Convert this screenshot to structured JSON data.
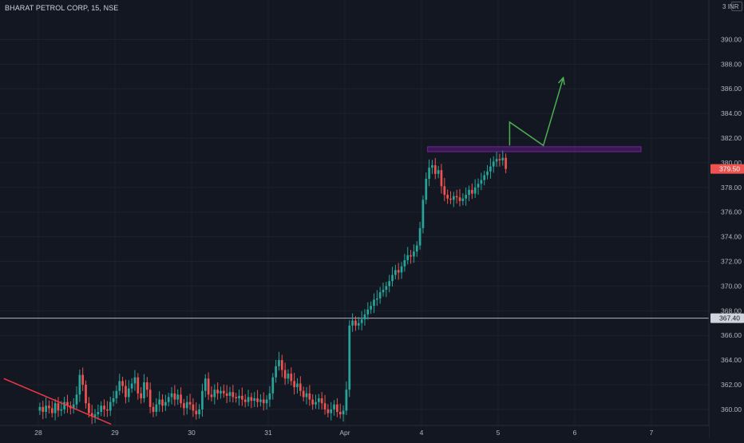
{
  "header": {
    "symbol_title": "BHARAT PETROL CORP, 15, NSE",
    "currency": "INR",
    "axis_cutoff_label": "3"
  },
  "colors": {
    "background": "#131722",
    "up": "#26a69a",
    "down": "#ef5350",
    "grid": "#1e222d",
    "axis_text": "#b2b5be",
    "support_line": "#b2b5be",
    "resistance_zone": "#7b1fa2",
    "projection_arrow": "#4caf50",
    "trendline": "#f23645"
  },
  "price_badges": {
    "last_price": "379.50",
    "support_level": "367.40"
  },
  "chart_data": {
    "type": "candlestick",
    "title": "BHARAT PETROL CORP, 15, NSE",
    "y_unit": "INR",
    "ylim": [
      358.7,
      393.2
    ],
    "y_ticks": [
      360,
      362,
      364,
      366,
      368,
      370,
      372,
      374,
      376,
      378,
      380,
      382,
      384,
      386,
      388,
      390
    ],
    "x_ticks": [
      {
        "label": "28",
        "session": 0
      },
      {
        "label": "29",
        "session": 1
      },
      {
        "label": "30",
        "session": 2
      },
      {
        "label": "31",
        "session": 3
      },
      {
        "label": "Apr",
        "session": 4
      },
      {
        "label": "4",
        "session": 5
      },
      {
        "label": "5",
        "session": 6
      },
      {
        "label": "6",
        "session": 7
      },
      {
        "label": "7",
        "session": 8
      }
    ],
    "grid": true,
    "last_price": 379.5,
    "horizontal_levels": [
      367.4
    ],
    "resistance_zone": {
      "from": 380.9,
      "to": 381.3
    },
    "sessions": [
      {
        "label": "28",
        "closes": [
          360.2,
          359.8,
          360.3,
          360.1,
          359.7,
          360.5,
          359.9,
          360.0,
          360.6,
          360.3,
          360.1,
          360.4,
          361.2,
          362.8,
          362.0,
          360.5,
          359.7,
          359.4,
          359.6,
          359.8,
          360.3,
          360.0,
          359.9,
          360.6,
          360.9
        ]
      },
      {
        "label": "29",
        "closes": [
          361.5,
          362.3,
          361.9,
          361.0,
          361.7,
          362.1,
          362.6,
          361.3,
          360.9,
          362.2,
          361.6,
          360.2,
          359.8,
          360.4,
          360.8,
          360.3,
          360.6,
          361.0,
          361.3,
          360.8,
          361.2,
          360.5,
          360.1,
          360.6,
          360.4
        ]
      },
      {
        "label": "30",
        "closes": [
          359.9,
          359.6,
          360.0,
          361.5,
          362.5,
          361.2,
          361.0,
          361.6,
          361.3,
          361.5,
          361.3,
          361.1,
          361.4,
          361.0,
          360.9,
          361.1,
          360.8,
          360.6,
          361.0,
          360.7,
          360.9,
          360.6,
          360.8,
          360.5,
          360.8
        ]
      },
      {
        "label": "31",
        "closes": [
          361.3,
          362.6,
          363.5,
          364.0,
          363.2,
          362.5,
          362.9,
          362.3,
          361.8,
          362.1,
          361.5,
          361.0,
          361.3,
          360.8,
          360.4,
          360.6,
          360.9,
          360.5,
          360.0,
          359.7,
          360.0,
          360.4,
          359.8,
          359.6,
          359.9
        ]
      },
      {
        "label": "Apr",
        "closes": [
          361.6,
          366.8,
          367.2,
          366.8,
          367.0,
          367.3,
          367.7,
          368.1,
          368.4,
          368.9,
          369.0,
          369.5,
          369.7,
          370.0,
          370.4,
          370.9,
          371.3,
          371.1,
          371.6,
          372.1,
          372.5,
          372.4,
          372.8,
          373.3,
          374.7
        ]
      },
      {
        "label": "4",
        "closes": [
          377.0,
          378.7,
          379.6,
          379.8,
          379.1,
          379.4,
          378.1,
          377.4,
          377.1,
          377.0,
          377.3,
          377.2,
          376.9,
          377.1,
          377.4,
          377.8,
          377.5,
          378.0,
          378.3,
          378.6,
          379.0,
          379.3,
          379.7,
          380.1,
          380.3
        ]
      },
      {
        "label": "5",
        "closes": [
          380.2,
          380.4,
          379.5
        ]
      }
    ]
  },
  "drawings": {
    "support_line_price": 367.4,
    "resistance_zone_start_session": 5.08,
    "trendline": [
      {
        "session": -0.45,
        "price": 362.5
      },
      {
        "session": 0.95,
        "price": 358.8
      }
    ],
    "projection_path": [
      {
        "session": 6.15,
        "price": 381.4
      },
      {
        "session": 6.15,
        "price": 383.3
      },
      {
        "session": 6.59,
        "price": 381.4
      },
      {
        "session": 6.85,
        "price": 386.9
      }
    ]
  }
}
